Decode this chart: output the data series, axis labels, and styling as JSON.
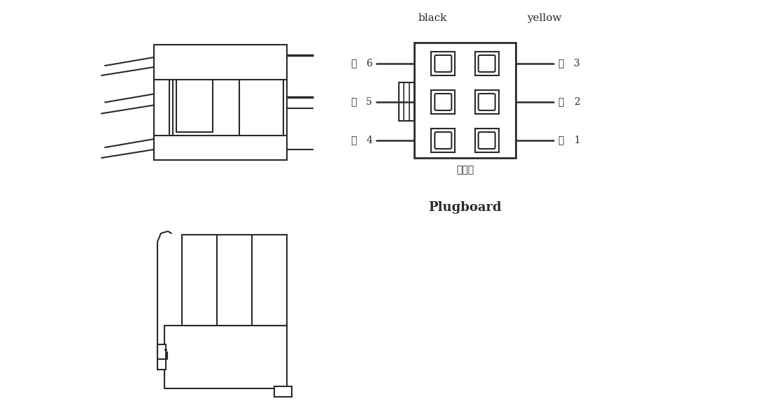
{
  "bg_color": "#ffffff",
  "lc": "#2a2a2a",
  "lw": 1.5,
  "label_black": "black",
  "label_yellow": "yellow",
  "label_plugboard_cn": "插板端",
  "label_plugboard_en": "Plugboard",
  "pins_left": [
    {
      "num": "6",
      "cn": "黑"
    },
    {
      "num": "5",
      "cn": "黑"
    },
    {
      "num": "4",
      "cn": "黑"
    }
  ],
  "pins_right": [
    {
      "num": "3",
      "cn": "黄"
    },
    {
      "num": "2",
      "cn": "黄"
    },
    {
      "num": "1",
      "cn": "黄"
    }
  ]
}
